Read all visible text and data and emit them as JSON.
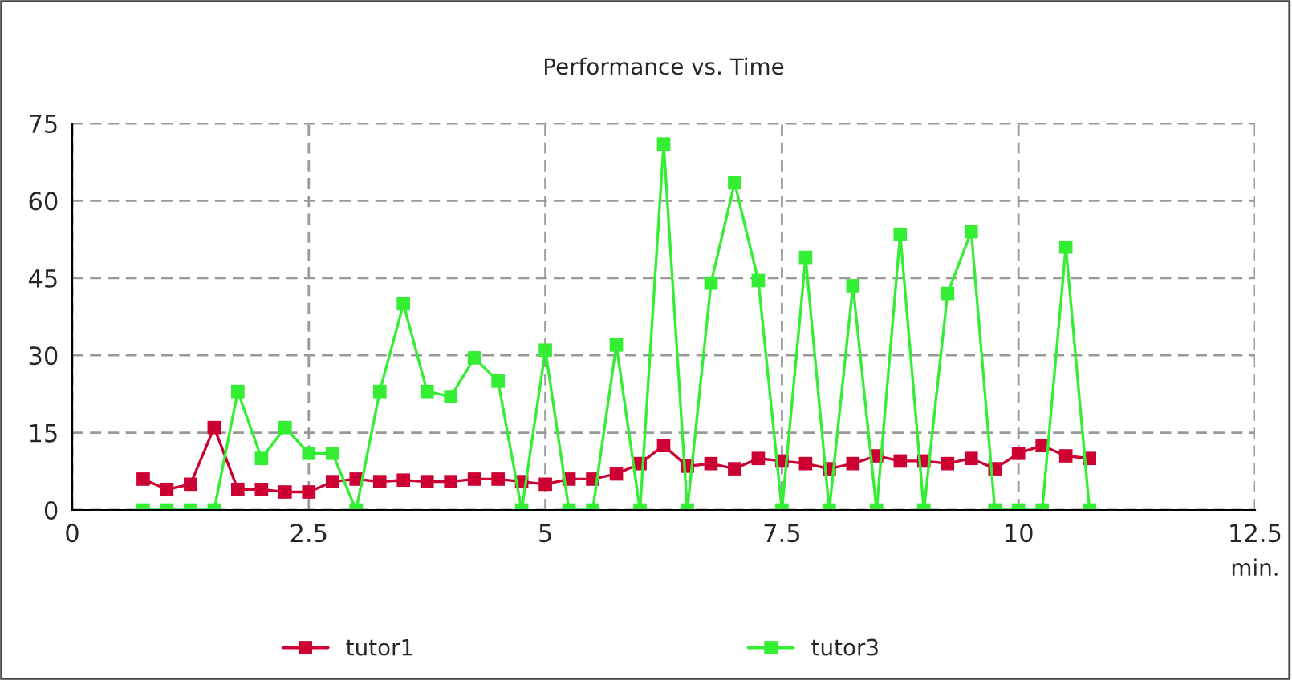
{
  "chart_data": {
    "type": "line",
    "title": "Performance vs. Time",
    "xlabel": "min.",
    "x": [
      0.75,
      1.0,
      1.25,
      1.5,
      1.75,
      2.0,
      2.25,
      2.5,
      2.75,
      3.0,
      3.25,
      3.5,
      3.75,
      4.0,
      4.25,
      4.5,
      4.75,
      5.0,
      5.25,
      5.5,
      5.75,
      6.0,
      6.25,
      6.5,
      6.75,
      7.0,
      7.25,
      7.5,
      7.75,
      8.0,
      8.25,
      8.5,
      8.75,
      9.0,
      9.25,
      9.5,
      9.75,
      10.0,
      10.25,
      10.5,
      10.75
    ],
    "series": [
      {
        "name": "tutor1",
        "color": "#cc0033",
        "values": [
          6,
          4,
          5,
          16,
          4,
          4,
          3.5,
          3.5,
          5.5,
          6,
          5.5,
          5.8,
          5.5,
          5.5,
          6,
          6,
          5.5,
          5,
          6,
          6,
          7,
          9,
          12.5,
          8.5,
          9,
          8,
          10,
          9.5,
          9,
          8,
          9,
          10.5,
          9.5,
          9.5,
          9,
          10,
          8,
          11,
          12.5,
          10.5,
          10
        ]
      },
      {
        "name": "tutor3",
        "color": "#33ee33",
        "values": [
          0,
          0,
          0,
          0,
          23,
          10,
          16,
          11,
          11,
          0,
          23,
          40,
          23,
          22,
          29.5,
          25,
          0,
          31,
          0,
          0,
          32,
          0,
          71,
          0,
          44,
          63.5,
          44.5,
          0,
          49,
          0,
          43.5,
          0,
          53.5,
          0,
          42,
          54,
          0,
          0,
          0,
          51,
          0
        ]
      }
    ],
    "xlim": [
      0,
      12.5
    ],
    "xticks": [
      0,
      2.5,
      5,
      7.5,
      10,
      12.5
    ],
    "ylim": [
      0,
      75
    ],
    "yticks": [
      0,
      15,
      30,
      45,
      60,
      75
    ],
    "grid": true,
    "legend": "bottom",
    "marker": "square",
    "line_style": "solid"
  }
}
